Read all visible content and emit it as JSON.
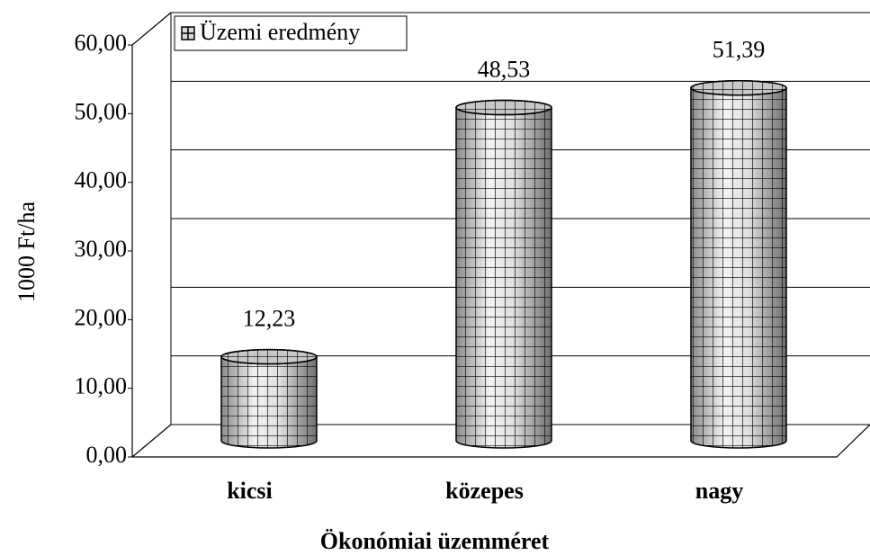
{
  "chart_data": {
    "type": "bar",
    "categories": [
      "kicsi",
      "közepes",
      "nagy"
    ],
    "series": [
      {
        "name": "Üzemi eredmény",
        "color": "#d9d9d9",
        "values": [
          12.23,
          48.53,
          51.39
        ],
        "value_labels": [
          "12,23",
          "48,53",
          "51,39"
        ]
      }
    ],
    "ylabel": "1000 Ft/ha",
    "xlabel": "Ökonómiai üzemméret",
    "ylim": [
      0,
      60
    ],
    "yticks": [
      {
        "value": 0,
        "label": "0,00"
      },
      {
        "value": 10,
        "label": "10,00"
      },
      {
        "value": 20,
        "label": "20,00"
      },
      {
        "value": 30,
        "label": "30,00"
      },
      {
        "value": 40,
        "label": "40,00"
      },
      {
        "value": 50,
        "label": "50,00"
      },
      {
        "value": 60,
        "label": "60,00"
      }
    ],
    "grid": true,
    "legend": "top-left"
  }
}
